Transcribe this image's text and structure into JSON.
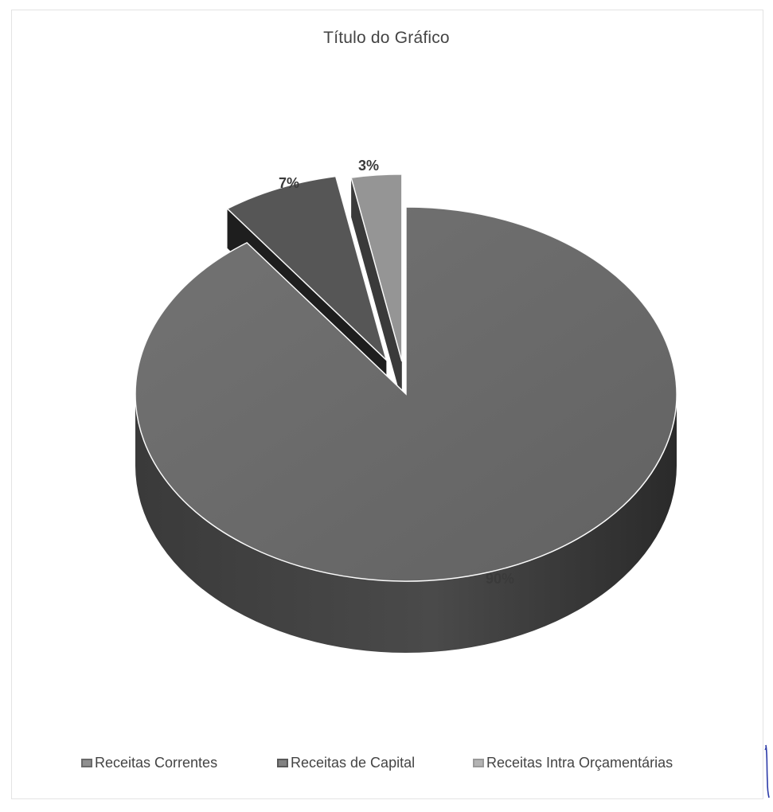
{
  "chart_data": {
    "type": "pie",
    "title": "Título do Gráfico",
    "style": "3d-exploded",
    "categories": [
      "Receitas Correntes",
      "Receitas de Capital",
      "Receitas Intra Orçamentárias"
    ],
    "values": [
      90,
      7,
      3
    ],
    "labels": [
      "90%",
      "7%",
      "3%"
    ],
    "colors": [
      "#6a6a6a",
      "#595959",
      "#9a9a9a"
    ],
    "legend_position": "bottom"
  }
}
